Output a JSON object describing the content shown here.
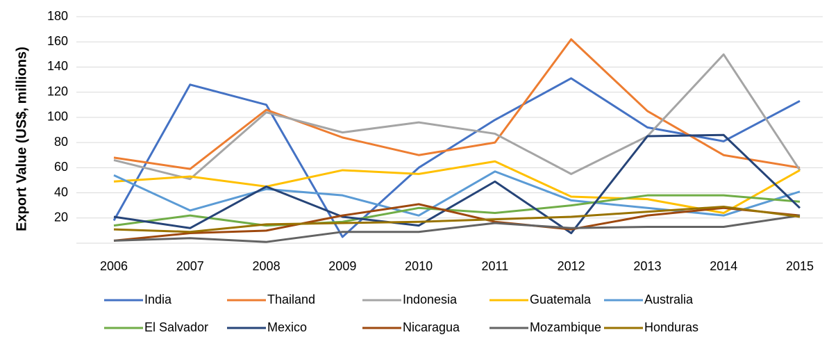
{
  "chart_data": {
    "type": "line",
    "y_label": "Export Value (US$, millions)",
    "categories": [
      "2006",
      "2007",
      "2008",
      "2009",
      "2010",
      "2011",
      "2012",
      "2013",
      "2014",
      "2015"
    ],
    "ylim": [
      0,
      180
    ],
    "yticks": [
      20,
      40,
      60,
      80,
      100,
      120,
      140,
      160,
      180
    ],
    "grid": true,
    "legend": "bottom",
    "series": [
      {
        "name": "India",
        "color": "#4472c4",
        "values": [
          18,
          126,
          110,
          5,
          60,
          98,
          131,
          92,
          81,
          113
        ]
      },
      {
        "name": "Thailand",
        "color": "#ed7d31",
        "values": [
          68,
          59,
          106,
          84,
          70,
          80,
          162,
          105,
          70,
          60
        ]
      },
      {
        "name": "Indonesia",
        "color": "#a5a5a5",
        "values": [
          66,
          51,
          104,
          88,
          96,
          87,
          55,
          85,
          150,
          58
        ]
      },
      {
        "name": "Guatemala",
        "color": "#ffc000",
        "values": [
          49,
          53,
          45,
          58,
          55,
          65,
          37,
          35,
          24,
          58
        ]
      },
      {
        "name": "Australia",
        "color": "#5b9bd5",
        "values": [
          54,
          26,
          43,
          38,
          22,
          57,
          34,
          28,
          22,
          41
        ]
      },
      {
        "name": "El Salvador",
        "color": "#70ad47",
        "values": [
          14,
          22,
          14,
          17,
          28,
          24,
          30,
          38,
          38,
          33
        ]
      },
      {
        "name": "Mexico",
        "color": "#264478",
        "values": [
          21,
          12,
          45,
          21,
          14,
          49,
          8,
          85,
          86,
          28
        ]
      },
      {
        "name": "Nicaragua",
        "color": "#9e480e",
        "values": [
          2,
          8,
          10,
          22,
          31,
          17,
          11,
          22,
          28,
          22
        ]
      },
      {
        "name": "Mozambique",
        "color": "#636363",
        "values": [
          2,
          4,
          1,
          9,
          9,
          16,
          12,
          13,
          13,
          22
        ]
      },
      {
        "name": "Honduras",
        "color": "#997300",
        "values": [
          11,
          9,
          15,
          16,
          17,
          19,
          21,
          25,
          29,
          21
        ]
      }
    ]
  }
}
